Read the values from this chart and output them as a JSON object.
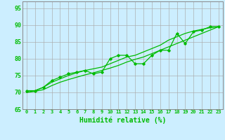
{
  "xlabel": "Humidité relative (%)",
  "background_color": "#cceeff",
  "grid_color": "#aaaaaa",
  "line_color": "#00bb00",
  "x_values": [
    0,
    1,
    2,
    3,
    4,
    5,
    6,
    7,
    8,
    9,
    10,
    11,
    12,
    13,
    14,
    15,
    16,
    17,
    18,
    19,
    20,
    21,
    22,
    23
  ],
  "line_jagged": [
    70.5,
    70.5,
    71.5,
    73.5,
    74.5,
    75.5,
    76.0,
    76.5,
    75.5,
    76.0,
    80.0,
    81.0,
    81.0,
    78.5,
    78.5,
    81.0,
    82.5,
    82.5,
    87.5,
    84.5,
    88.0,
    88.5,
    89.5,
    89.5
  ],
  "line_upper": [
    70.0,
    70.5,
    71.5,
    73.0,
    74.0,
    75.0,
    75.8,
    76.5,
    77.0,
    77.5,
    78.5,
    79.5,
    80.5,
    81.0,
    82.0,
    83.0,
    84.0,
    85.5,
    86.5,
    87.5,
    88.2,
    88.7,
    89.2,
    89.5
  ],
  "line_lower": [
    70.0,
    70.3,
    70.8,
    72.0,
    73.0,
    73.8,
    74.5,
    75.2,
    75.8,
    76.5,
    77.2,
    78.0,
    79.0,
    79.8,
    80.5,
    81.5,
    82.5,
    83.5,
    84.5,
    85.5,
    86.5,
    87.5,
    88.5,
    89.5
  ],
  "ylim": [
    65,
    97
  ],
  "yticks": [
    65,
    70,
    75,
    80,
    85,
    90,
    95
  ],
  "xlim": [
    -0.5,
    23.5
  ],
  "xtick_fontsize": 5.0,
  "ytick_fontsize": 6.0,
  "xlabel_fontsize": 7.0
}
